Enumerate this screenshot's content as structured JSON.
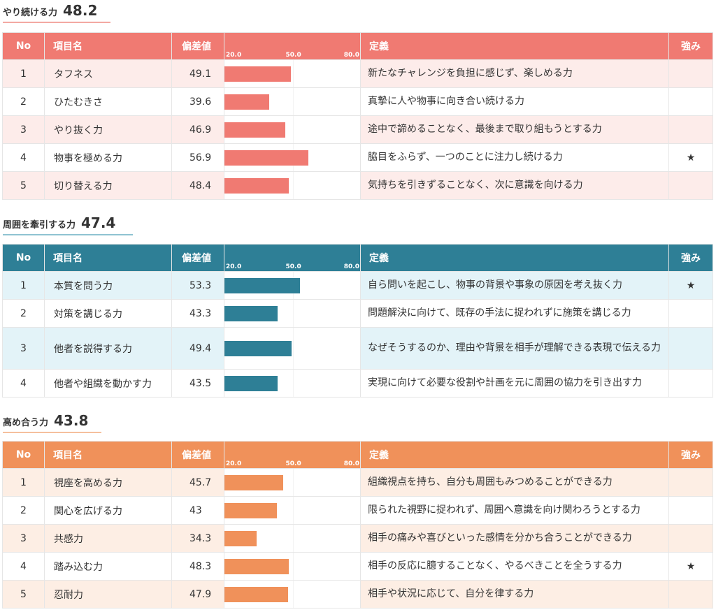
{
  "scale": {
    "min": 20,
    "mid": 50,
    "max": 80,
    "labels": [
      "20.0",
      "50.0",
      "80.0"
    ]
  },
  "headers": {
    "no": "No",
    "name": "項目名",
    "score": "偏差値",
    "definition": "定義",
    "strength": "強み"
  },
  "sections": [
    {
      "title": "やり続ける力",
      "score": "48.2",
      "accent": "#f07a72",
      "row_tint": "#fdecea",
      "underline": "#f3a9a3",
      "rows": [
        {
          "no": "1",
          "name": "タフネス",
          "score": 49.1,
          "score_text": "49.1",
          "definition": "新たなチャレンジを負担に感じず、楽しめる力",
          "strength": ""
        },
        {
          "no": "2",
          "name": "ひたむきさ",
          "score": 39.6,
          "score_text": "39.6",
          "definition": "真摯に人や物事に向き合い続ける力",
          "strength": ""
        },
        {
          "no": "3",
          "name": "やり抜く力",
          "score": 46.9,
          "score_text": "46.9",
          "definition": "途中で諦めることなく、最後まで取り組もうとする力",
          "strength": ""
        },
        {
          "no": "4",
          "name": "物事を極める力",
          "score": 56.9,
          "score_text": "56.9",
          "definition": "脇目をふらず、一つのことに注力し続ける力",
          "strength": "★"
        },
        {
          "no": "5",
          "name": "切り替える力",
          "score": 48.4,
          "score_text": "48.4",
          "definition": "気持ちを引きずることなく、次に意識を向ける力",
          "strength": ""
        }
      ]
    },
    {
      "title": "周囲を牽引する力",
      "score": "47.4",
      "accent": "#2e7f96",
      "row_tint": "#e3f3f8",
      "underline": "#8fc3d2",
      "rows": [
        {
          "no": "1",
          "name": "本質を問う力",
          "score": 53.3,
          "score_text": "53.3",
          "definition": "自ら問いを起こし、物事の背景や事象の原因を考え抜く力",
          "strength": "★"
        },
        {
          "no": "2",
          "name": "対策を講じる力",
          "score": 43.3,
          "score_text": "43.3",
          "definition": "問題解決に向けて、既存の手法に捉われずに施策を講じる力",
          "strength": ""
        },
        {
          "no": "3",
          "name": "他者を説得する力",
          "score": 49.4,
          "score_text": "49.4",
          "definition": "なぜそうするのか、理由や背景を相手が理解できる表現で伝える力",
          "strength": ""
        },
        {
          "no": "4",
          "name": "他者や組織を動かす力",
          "score": 43.5,
          "score_text": "43.5",
          "definition": "実現に向けて必要な役割や計画を元に周囲の協力を引き出す力",
          "strength": ""
        }
      ]
    },
    {
      "title": "高め合う力",
      "score": "43.8",
      "accent": "#f0915a",
      "row_tint": "#fdeee4",
      "underline": "#f5c09d",
      "rows": [
        {
          "no": "1",
          "name": "視座を高める力",
          "score": 45.7,
          "score_text": "45.7",
          "definition": "組織視点を持ち、自分も周囲もみつめることができる力",
          "strength": ""
        },
        {
          "no": "2",
          "name": "関心を広げる力",
          "score": 43,
          "score_text": "43",
          "definition": "限られた視野に捉われず、周囲へ意識を向け関わろうとする力",
          "strength": ""
        },
        {
          "no": "3",
          "name": "共感力",
          "score": 34.3,
          "score_text": "34.3",
          "definition": "相手の痛みや喜びといった感情を分かち合うことができる力",
          "strength": ""
        },
        {
          "no": "4",
          "name": "踏み込む力",
          "score": 48.3,
          "score_text": "48.3",
          "definition": "相手の反応に臆することなく、やるべきことを全うする力",
          "strength": "★"
        },
        {
          "no": "5",
          "name": "忍耐力",
          "score": 47.9,
          "score_text": "47.9",
          "definition": "相手や状況に応じて、自分を律する力",
          "strength": ""
        }
      ]
    }
  ]
}
